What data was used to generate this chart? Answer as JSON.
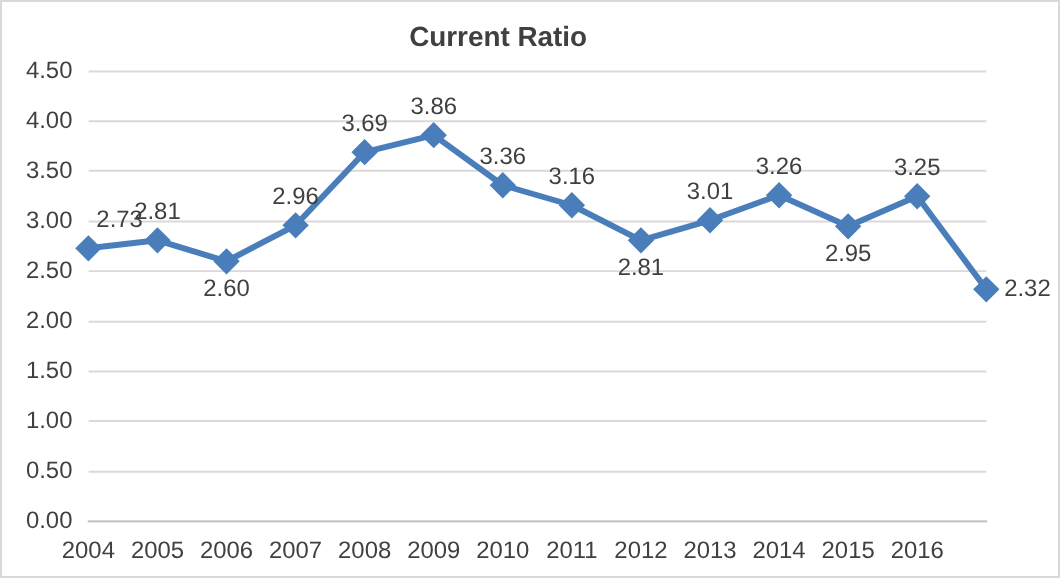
{
  "chart_data": {
    "type": "line",
    "title": "Current Ratio",
    "categories": [
      "2004",
      "2005",
      "2006",
      "2007",
      "2008",
      "2009",
      "2010",
      "2011",
      "2012",
      "2013",
      "2014",
      "2015",
      "2016",
      null
    ],
    "series": [
      {
        "color": "#4a7ebb",
        "values": [
          2.73,
          2.81,
          2.6,
          2.96,
          3.69,
          3.86,
          3.36,
          3.16,
          2.81,
          3.01,
          3.26,
          2.95,
          3.25,
          2.32
        ],
        "value_labels": [
          "2.73",
          "2.81",
          "2.60",
          "2.96",
          "3.69",
          "3.86",
          "3.36",
          "3.16",
          "2.81",
          "3.01",
          "3.26",
          "2.95",
          "3.25",
          "2.32"
        ]
      }
    ],
    "ylim": [
      0,
      4.5
    ],
    "yticks": [
      {
        "value": 0,
        "label": "0.00"
      },
      {
        "value": 0.5,
        "label": "0.50"
      },
      {
        "value": 1,
        "label": "1.00"
      },
      {
        "value": 1.5,
        "label": "1.50"
      },
      {
        "value": 2,
        "label": "2.00"
      },
      {
        "value": 2.5,
        "label": "2.50"
      },
      {
        "value": 3,
        "label": "3.00"
      },
      {
        "value": 3.5,
        "label": "3.50"
      },
      {
        "value": 4,
        "label": "4.00"
      },
      {
        "value": 4.5,
        "label": "4.50"
      }
    ],
    "grid": "y",
    "legend": false,
    "marker": "diamond",
    "line_style": "solid"
  }
}
